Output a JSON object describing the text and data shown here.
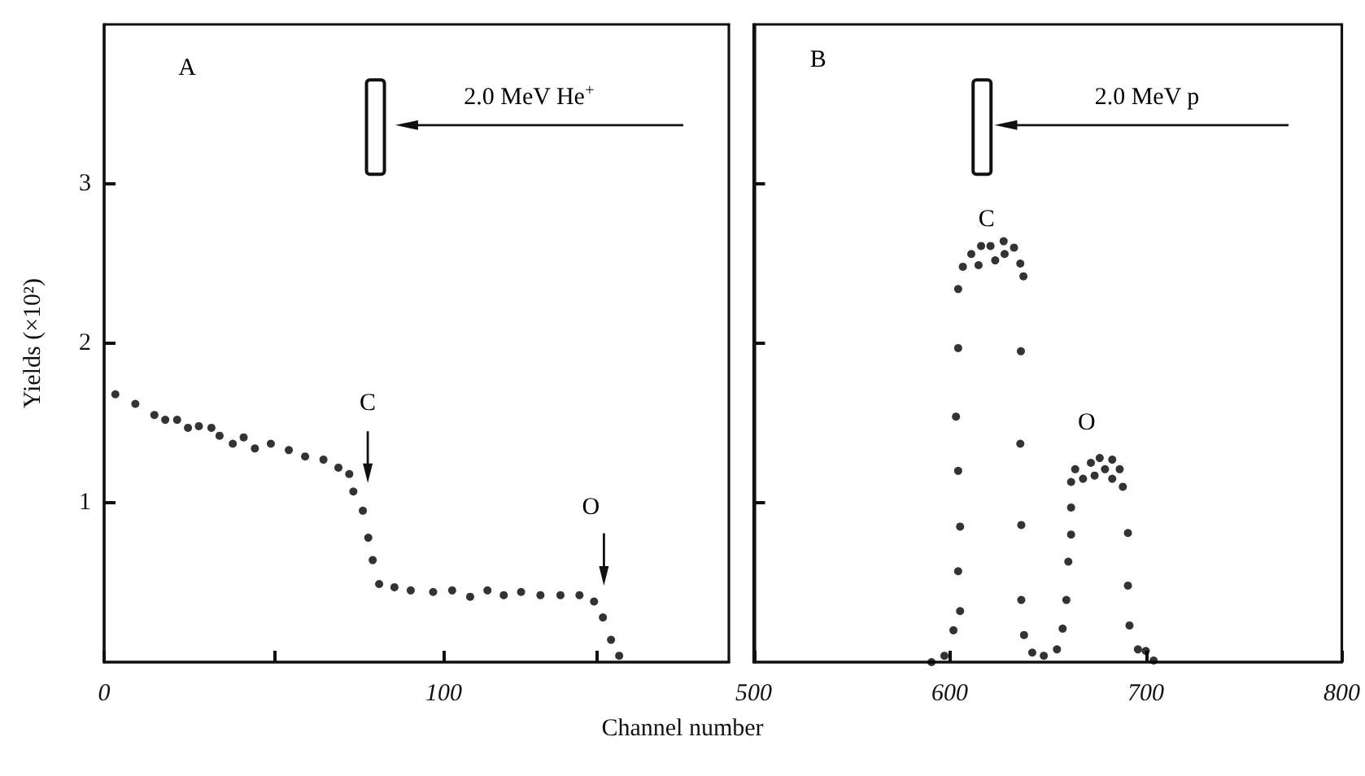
{
  "chart_data": [
    {
      "type": "scatter",
      "xlabel": "Channel number",
      "ylabel": "Yields (×10²)",
      "xlim": [
        0,
        184
      ],
      "xticks": [
        0,
        {
          "value": 50,
          "label": null
        },
        100,
        {
          "value": 145,
          "label": null
        }
      ],
      "ylim": [
        0,
        4
      ],
      "yticks": [
        1,
        2,
        3
      ],
      "marker": "circle",
      "grid": false,
      "annotations": [
        "A",
        "2.0 MeV He$^{+}$",
        "C",
        "O"
      ],
      "series": [
        {
          "color": "#000000",
          "x": [
            3.3,
            9.2,
            14.8,
            18,
            21.5,
            24.7,
            27.9,
            31.6,
            34,
            37.9,
            41.1,
            44.4,
            49.1,
            54.4,
            59.2,
            64.6,
            69,
            72.2,
            73.4,
            76.2,
            77.8,
            79.1,
            81,
            85.5,
            90.3,
            96.9,
            102.5,
            107.8,
            112.9,
            117.7,
            122.8,
            128.5,
            134.4,
            140,
            144.3,
            146.9,
            149.3,
            151.7
          ],
          "values": [
            1.68,
            1.62,
            1.55,
            1.52,
            1.52,
            1.47,
            1.48,
            1.47,
            1.42,
            1.37,
            1.41,
            1.34,
            1.37,
            1.33,
            1.29,
            1.27,
            1.22,
            1.18,
            1.07,
            0.95,
            0.78,
            0.64,
            0.49,
            0.47,
            0.45,
            0.44,
            0.45,
            0.41,
            0.45,
            0.42,
            0.44,
            0.42,
            0.42,
            0.42,
            0.38,
            0.28,
            0.14,
            0.04
          ]
        }
      ]
    },
    {
      "type": "scatter",
      "xlim": [
        500,
        800
      ],
      "xticks": [
        500,
        600,
        700,
        800
      ],
      "ylim": [
        0,
        4
      ],
      "yticks": [
        {
          "value": 1,
          "label": null
        },
        {
          "value": 2,
          "label": null
        },
        {
          "value": 3,
          "label": null
        }
      ],
      "tick_labels": "x",
      "marker": "circle",
      "grid": false,
      "annotations": [
        "B",
        "2.0 MeV p",
        "C",
        "O"
      ],
      "series": [
        {
          "color": "#000000",
          "x": [
            590.7,
            597.3,
            601.9,
            605.3,
            604.3,
            605.3,
            604.3,
            603.2,
            604.3,
            604.3,
            606.7,
            611,
            614.7,
            616,
            620.8,
            623.2,
            627.5,
            628,
            632.8,
            636,
            637.6,
            636.3,
            636,
            636.5,
            636.5,
            637.9,
            642.1,
            648,
            654.7,
            657.6,
            659.5,
            660.5,
            661.9,
            661.9,
            661.9,
            664,
            668,
            672,
            673.9,
            676.5,
            679.2,
            682.9,
            682.9,
            686.7,
            688.3,
            690.9,
            690.9,
            691.7,
            696,
            700,
            704
          ],
          "values": [
            0.0,
            0.04,
            0.2,
            0.32,
            0.57,
            0.85,
            1.2,
            1.54,
            1.97,
            2.34,
            2.48,
            2.56,
            2.49,
            2.61,
            2.61,
            2.52,
            2.64,
            2.56,
            2.6,
            2.5,
            2.42,
            1.95,
            1.37,
            0.86,
            0.39,
            0.17,
            0.06,
            0.04,
            0.08,
            0.21,
            0.39,
            0.63,
            0.8,
            0.97,
            1.13,
            1.21,
            1.15,
            1.25,
            1.17,
            1.28,
            1.21,
            1.27,
            1.15,
            1.21,
            1.1,
            0.81,
            0.48,
            0.23,
            0.08,
            0.07,
            0.01
          ]
        }
      ]
    }
  ]
}
